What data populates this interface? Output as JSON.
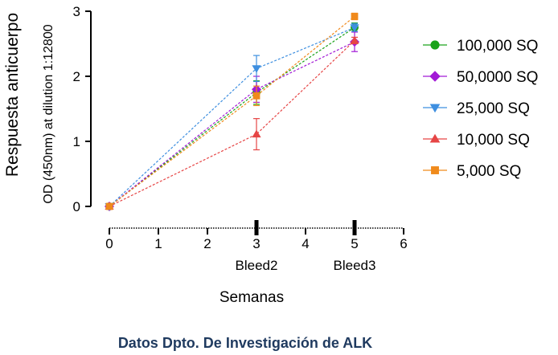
{
  "chart_data": {
    "type": "line",
    "ylabel": "Respuesta anticuerpo",
    "ylabel_secondary": "OD (450nm) at dilution 1:12800",
    "xlabel": "Semanas",
    "source_note": "Datos Dpto. De Investigación de ALK",
    "xlim": [
      0,
      6
    ],
    "ylim": [
      0,
      3
    ],
    "x_ticks": [
      "0",
      "1",
      "2",
      "3",
      "4",
      "5",
      "6"
    ],
    "y_ticks": [
      "0",
      "1",
      "2",
      "3"
    ],
    "x_annotations": [
      {
        "x": 3,
        "label": "Bleed2"
      },
      {
        "x": 5,
        "label": "Bleed3"
      }
    ],
    "x": [
      0,
      3,
      5
    ],
    "legend_position": "right",
    "series": [
      {
        "name": "100,000 SQ",
        "color": "#1aa31a",
        "marker": "circle",
        "values": [
          0,
          1.75,
          2.75
        ],
        "errors": [
          0,
          0.18,
          0.07
        ]
      },
      {
        "name": "50,0000 SQ",
        "color": "#a21ad6",
        "marker": "diamond",
        "values": [
          0,
          1.8,
          2.53
        ],
        "errors": [
          0,
          0.2,
          0.15
        ]
      },
      {
        "name": "25,000 SQ",
        "color": "#3e8fe0",
        "marker": "triangle-down",
        "values": [
          0,
          2.12,
          2.75
        ],
        "errors": [
          0,
          0.2,
          0.06
        ]
      },
      {
        "name": "10,000 SQ",
        "color": "#e64545",
        "marker": "triangle-up",
        "values": [
          0,
          1.11,
          2.55
        ],
        "errors": [
          0,
          0.24,
          0.05
        ]
      },
      {
        "name": "5,000 SQ",
        "color": "#f08a1c",
        "marker": "square",
        "values": [
          0,
          1.7,
          2.92
        ],
        "errors": [
          0,
          0.15,
          0.05
        ]
      }
    ]
  }
}
